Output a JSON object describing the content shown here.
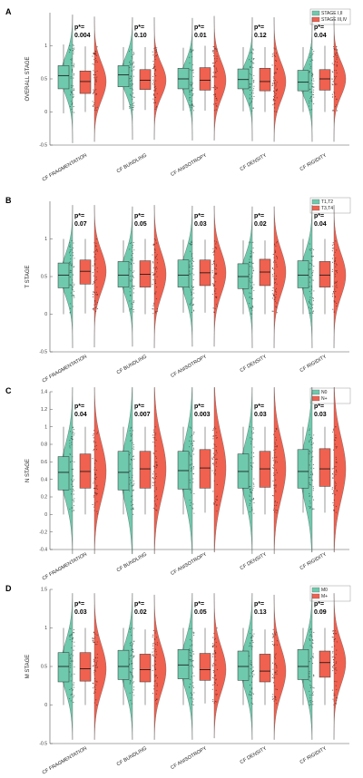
{
  "colors": {
    "group1": "#6fc9ad",
    "group2": "#f0614f",
    "dots1": "#2f5f52",
    "dots2": "#6b241c",
    "axis": "#555555"
  },
  "chart_data": [
    {
      "type": "violin",
      "panel_label": "A",
      "ylabel": "OVERALL STAGE",
      "ylim": [
        -0.5,
        1.5
      ],
      "yticks": [
        -0.5,
        0,
        0.5,
        1
      ],
      "ytick_labels": [
        "-0.5",
        "0",
        "0.5",
        "1"
      ],
      "categories": [
        "CF FRAGMENTATION",
        "CF BUNDLING",
        "CF ANISOTROPY",
        "CF DENSITY",
        "CF RIGIDITY"
      ],
      "legend": [
        "STAGE I,II",
        "STAGE III,IV"
      ],
      "p_label": "p*=",
      "p_values": [
        "0.004",
        "0.10",
        "0.01",
        "0.12",
        "0.04"
      ],
      "series": [
        {
          "name": "STAGE I,II",
          "median": [
            0.55,
            0.56,
            0.5,
            0.49,
            0.45
          ],
          "q1": [
            0.35,
            0.38,
            0.35,
            0.35,
            0.32
          ],
          "q3": [
            0.7,
            0.7,
            0.66,
            0.65,
            0.63
          ],
          "min": [
            -0.02,
            0.03,
            0.02,
            0.01,
            0.0
          ],
          "max": [
            1.02,
            0.98,
            0.97,
            0.98,
            0.98
          ]
        },
        {
          "name": "STAGE III,IV",
          "median": [
            0.46,
            0.48,
            0.48,
            0.46,
            0.5
          ],
          "q1": [
            0.28,
            0.34,
            0.33,
            0.32,
            0.33
          ],
          "q3": [
            0.62,
            0.64,
            0.67,
            0.66,
            0.64
          ],
          "min": [
            0.0,
            0.03,
            0.02,
            0.0,
            0.0
          ],
          "max": [
            0.99,
            0.98,
            1.0,
            0.98,
            1.0
          ]
        }
      ]
    },
    {
      "type": "violin",
      "panel_label": "B",
      "ylabel": "T STAGE",
      "ylim": [
        -0.5,
        1.5
      ],
      "yticks": [
        -0.5,
        0,
        0.5,
        1
      ],
      "ytick_labels": [
        "-0.5",
        "0",
        "0.5",
        "1"
      ],
      "categories": [
        "CF FRAGMENTATION",
        "CF BUNDLING",
        "CF ANISOTROPY",
        "CF DENSITY",
        "CF RIGIDITY"
      ],
      "legend": [
        "T1,T2",
        "T3,T4"
      ],
      "p_label": "p*=",
      "p_values": [
        "0.07",
        "0.05",
        "0.03",
        "0.02",
        "0.04"
      ],
      "series": [
        {
          "name": "T1,T2",
          "median": [
            0.52,
            0.52,
            0.52,
            0.5,
            0.52
          ],
          "q1": [
            0.35,
            0.36,
            0.36,
            0.34,
            0.35
          ],
          "q3": [
            0.68,
            0.7,
            0.72,
            0.67,
            0.71
          ],
          "min": [
            0.0,
            0.02,
            0.02,
            0.0,
            0.0
          ],
          "max": [
            1.0,
            0.98,
            0.99,
            0.98,
            1.0
          ]
        },
        {
          "name": "T3,T4",
          "median": [
            0.57,
            0.53,
            0.55,
            0.56,
            0.52
          ],
          "q1": [
            0.4,
            0.36,
            0.38,
            0.38,
            0.36
          ],
          "q3": [
            0.72,
            0.71,
            0.72,
            0.73,
            0.7
          ],
          "min": [
            0.01,
            0.0,
            0.02,
            0.0,
            0.0
          ],
          "max": [
            1.0,
            1.0,
            0.99,
            0.98,
            1.0
          ]
        }
      ]
    },
    {
      "type": "violin",
      "panel_label": "C",
      "ylabel": "N STAGE",
      "ylim": [
        -0.4,
        1.4
      ],
      "yticks": [
        -0.4,
        -0.2,
        0,
        0.2,
        0.4,
        0.6,
        0.8,
        1,
        1.2,
        1.4
      ],
      "ytick_labels": [
        "-0.4",
        "-0.2",
        "0",
        "0.2",
        "0.4",
        "0.6",
        "0.8",
        "1",
        "1.2",
        "1.4"
      ],
      "categories": [
        "CF FRAGMENTATION",
        "CF BUNDLING",
        "CF ANISOTROPY",
        "CF DENSITY",
        "CF RIGIDITY"
      ],
      "legend": [
        "N0",
        "N+"
      ],
      "p_label": "p*=",
      "p_values": [
        "0.04",
        "0.007",
        "0.003",
        "0.03",
        "0.03"
      ],
      "series": [
        {
          "name": "N0",
          "median": [
            0.48,
            0.48,
            0.5,
            0.49,
            0.49
          ],
          "q1": [
            0.28,
            0.28,
            0.29,
            0.3,
            0.3
          ],
          "q3": [
            0.66,
            0.72,
            0.72,
            0.69,
            0.74
          ],
          "min": [
            0.0,
            0.0,
            0.0,
            0.0,
            0.02
          ],
          "max": [
            1.0,
            1.0,
            1.0,
            1.0,
            1.0
          ]
        },
        {
          "name": "N+",
          "median": [
            0.49,
            0.52,
            0.53,
            0.52,
            0.52
          ],
          "q1": [
            0.3,
            0.3,
            0.3,
            0.31,
            0.32
          ],
          "q3": [
            0.69,
            0.72,
            0.74,
            0.72,
            0.75
          ],
          "min": [
            0.0,
            0.0,
            0.02,
            0.0,
            0.02
          ],
          "max": [
            1.0,
            1.0,
            1.0,
            1.0,
            1.0
          ]
        }
      ]
    },
    {
      "type": "violin",
      "panel_label": "D",
      "ylabel": "M STAGE",
      "ylim": [
        -0.5,
        1.5
      ],
      "yticks": [
        -0.5,
        0,
        0.5,
        1,
        1.5
      ],
      "ytick_labels": [
        "-0.5",
        "0",
        "0.5",
        "1",
        "1.5"
      ],
      "categories": [
        "CF FRAGMENTATION",
        "CF BUNDLING",
        "CF ANISOTROPY",
        "CF DENSITY",
        "CF RIGIDITY"
      ],
      "legend": [
        "M0",
        "M+"
      ],
      "p_label": "p*=",
      "p_values": [
        "0.03",
        "0.02",
        "0.05",
        "0.13",
        "0.09"
      ],
      "series": [
        {
          "name": "M0",
          "median": [
            0.5,
            0.5,
            0.52,
            0.5,
            0.5
          ],
          "q1": [
            0.3,
            0.33,
            0.34,
            0.32,
            0.33
          ],
          "q3": [
            0.68,
            0.71,
            0.72,
            0.7,
            0.72
          ],
          "min": [
            0.0,
            0.0,
            0.0,
            0.0,
            0.0
          ],
          "max": [
            1.0,
            1.0,
            1.0,
            1.0,
            1.0
          ]
        },
        {
          "name": "M+",
          "median": [
            0.47,
            0.46,
            0.46,
            0.44,
            0.55
          ],
          "q1": [
            0.31,
            0.3,
            0.32,
            0.3,
            0.36
          ],
          "q3": [
            0.68,
            0.66,
            0.67,
            0.66,
            0.7
          ],
          "min": [
            0.0,
            0.0,
            0.02,
            0.0,
            0.0
          ],
          "max": [
            1.0,
            0.98,
            1.0,
            0.98,
            1.0
          ]
        }
      ]
    }
  ]
}
